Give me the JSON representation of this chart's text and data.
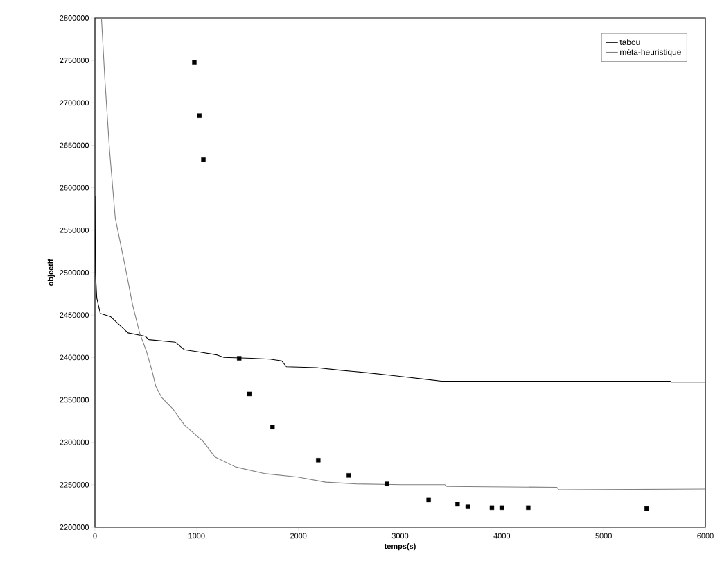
{
  "chart_data": {
    "type": "line",
    "xlabel": "temps(s)",
    "ylabel": "objectif",
    "xlim": [
      0,
      6000
    ],
    "ylim": [
      2200000,
      2800000
    ],
    "xticks": [
      0,
      1000,
      2000,
      3000,
      4000,
      5000,
      6000
    ],
    "yticks": [
      2200000,
      2250000,
      2300000,
      2350000,
      2400000,
      2450000,
      2500000,
      2550000,
      2600000,
      2650000,
      2700000,
      2750000,
      2800000
    ],
    "grid": false,
    "legend": "top right",
    "series": [
      {
        "name": "tabou",
        "color": "#000000",
        "x": [
          0,
          5,
          18,
          52,
          155,
          325,
          495,
          530,
          790,
          880,
          995,
          1200,
          1268,
          1540,
          1720,
          1836,
          1882,
          2177,
          2405,
          2677,
          2905,
          3053,
          3270,
          3405,
          5655,
          5665,
          6000
        ],
        "values": [
          2590000,
          2500000,
          2470000,
          2452000,
          2448000,
          2429000,
          2425000,
          2421000,
          2418000,
          2409000,
          2407000,
          2403000,
          2400000,
          2399000,
          2398000,
          2396000,
          2389000,
          2388000,
          2385000,
          2382000,
          2379000,
          2377000,
          2374000,
          2372000,
          2372000,
          2371000,
          2371000
        ]
      },
      {
        "name": "méta-heuristique",
        "color": "#808080",
        "x": [
          64,
          98,
          143,
          200,
          291,
          370,
          439,
          507,
          564,
          598,
          655,
          768,
          882,
          1064,
          1177,
          1382,
          1677,
          1995,
          2268,
          2564,
          3018,
          3440,
          3460,
          4540,
          4560,
          6000
        ],
        "values": [
          2800000,
          2727000,
          2645000,
          2564000,
          2511000,
          2462000,
          2429000,
          2407000,
          2383000,
          2366000,
          2353000,
          2339000,
          2320000,
          2301000,
          2283000,
          2271000,
          2263000,
          2259000,
          2253000,
          2251000,
          2250000,
          2250000,
          2248000,
          2247000,
          2244000,
          2245000
        ]
      },
      {
        "type": "scatter",
        "marker": "square",
        "color": "#000000",
        "x": [
          977,
          1027,
          1066,
          1418,
          1518,
          1745,
          2195,
          2495,
          2870,
          3280,
          3564,
          3664,
          3902,
          3998,
          4259,
          5423
        ],
        "values": [
          2748000,
          2685000,
          2633000,
          2399000,
          2357000,
          2318000,
          2279000,
          2261000,
          2251000,
          2232000,
          2227000,
          2224000,
          2223000,
          2223000,
          2223000,
          2222000
        ]
      }
    ]
  }
}
